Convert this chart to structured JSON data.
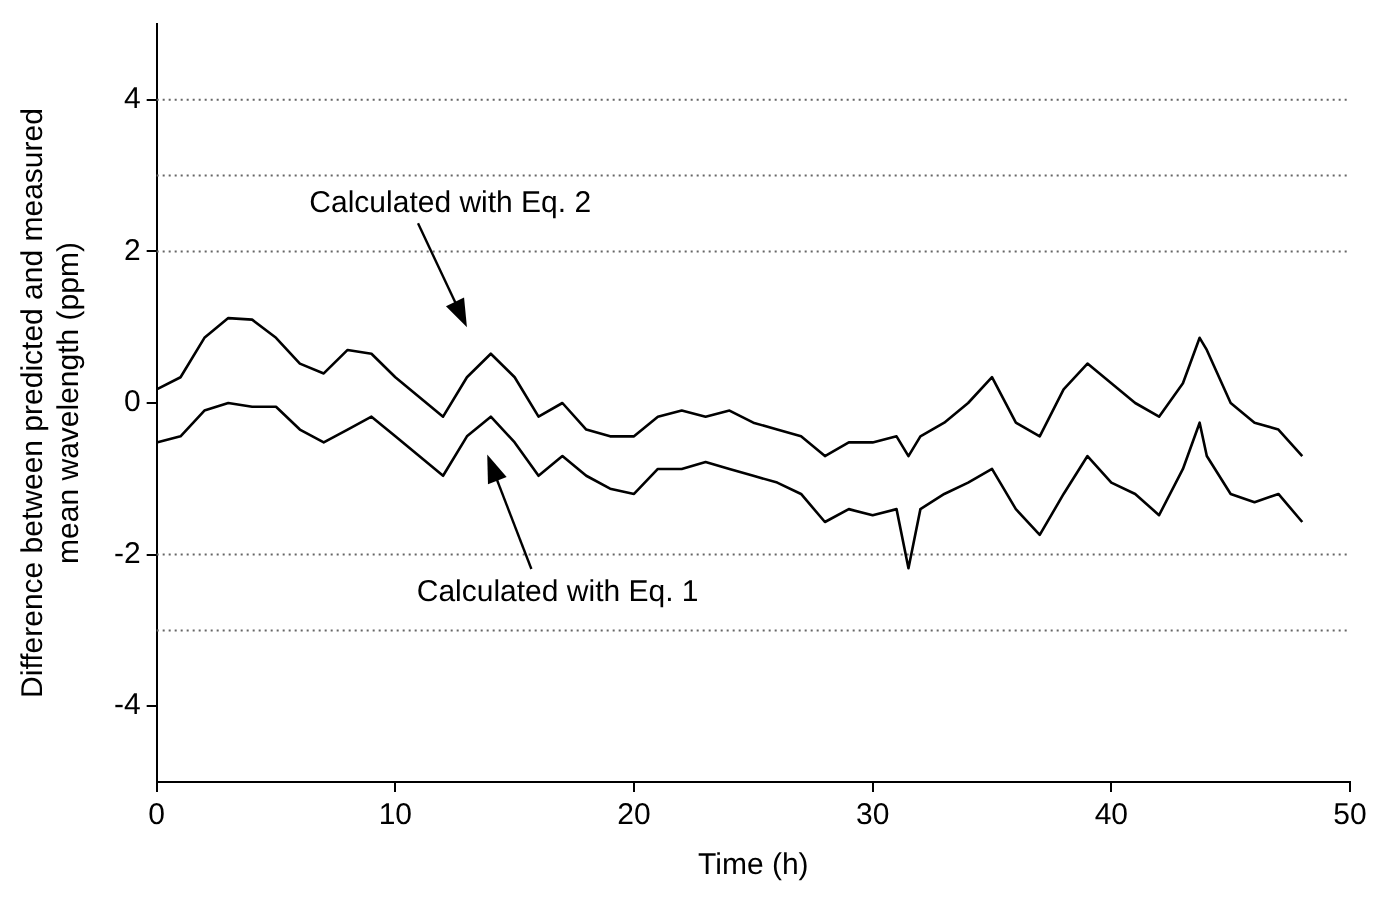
{
  "chart_data": {
    "type": "line",
    "xlabel": "Time (h)",
    "ylabel": "Difference between predicted and measured\nmean wavelength (ppm)",
    "x": [
      0,
      1,
      2,
      3,
      4,
      5,
      6,
      7,
      8,
      9,
      10,
      11,
      12,
      13,
      14,
      15,
      16,
      17,
      18,
      19,
      20,
      21,
      22,
      23,
      24,
      25,
      26,
      27,
      28,
      29,
      30,
      31,
      31.5,
      32,
      33,
      34,
      35,
      36,
      37,
      38,
      39,
      40,
      41,
      42,
      43,
      43.7,
      44,
      45,
      46,
      47,
      48
    ],
    "series": [
      {
        "color": "#000000",
        "values": [
          0.18,
          0.34,
          0.86,
          1.12,
          1.1,
          0.86,
          0.52,
          0.39,
          0.7,
          0.65,
          0.34,
          0.08,
          -0.18,
          0.34,
          0.65,
          0.34,
          -0.18,
          0,
          -0.35,
          -0.44,
          -0.44,
          -0.18,
          -0.1,
          -0.18,
          -0.1,
          -0.26,
          -0.35,
          -0.44,
          -0.7,
          -0.52,
          -0.52,
          -0.44,
          -0.7,
          -0.44,
          -0.26,
          0,
          0.34,
          -0.26,
          -0.44,
          0.18,
          0.52,
          0.26,
          0,
          -0.18,
          0.26,
          0.86,
          0.7,
          0,
          -0.26,
          -0.35,
          -0.7
        ]
      },
      {
        "color": "#000000",
        "values": [
          -0.52,
          -0.44,
          -0.1,
          0,
          -0.05,
          -0.05,
          -0.35,
          -0.52,
          -0.35,
          -0.18,
          -0.44,
          -0.7,
          -0.96,
          -0.44,
          -0.18,
          -0.52,
          -0.96,
          -0.7,
          -0.96,
          -1.13,
          -1.2,
          -0.87,
          -0.87,
          -0.78,
          -0.87,
          -0.96,
          -1.05,
          -1.2,
          -1.57,
          -1.4,
          -1.48,
          -1.4,
          -2.18,
          -1.4,
          -1.2,
          -1.05,
          -0.87,
          -1.4,
          -1.74,
          -1.2,
          -0.7,
          -1.05,
          -1.2,
          -1.48,
          -0.87,
          -0.26,
          -0.7,
          -1.2,
          -1.31,
          -1.2,
          -1.57
        ]
      }
    ],
    "xlim": [
      0,
      50
    ],
    "xticks": [
      0,
      10,
      20,
      30,
      40,
      50
    ],
    "ylim": [
      -5,
      5
    ],
    "yticks": [
      -4,
      -2,
      0,
      2,
      4
    ],
    "grid": false,
    "marker": "none",
    "line_style": "solid",
    "legend": false,
    "ref_lines": [
      {
        "axis": "y",
        "value": 4,
        "line_style": "dotted",
        "color": "#666666"
      },
      {
        "axis": "y",
        "value": 3,
        "line_style": "dotted",
        "color": "#666666"
      },
      {
        "axis": "y",
        "value": 2,
        "line_style": "dotted",
        "color": "#666666"
      },
      {
        "axis": "y",
        "value": -2,
        "line_style": "dotted",
        "color": "#666666"
      },
      {
        "axis": "y",
        "value": -3,
        "line_style": "dotted",
        "color": "#666666"
      }
    ],
    "annotations": [
      "Calculated with Eq. 2",
      "Calculated with Eq. 1"
    ]
  }
}
